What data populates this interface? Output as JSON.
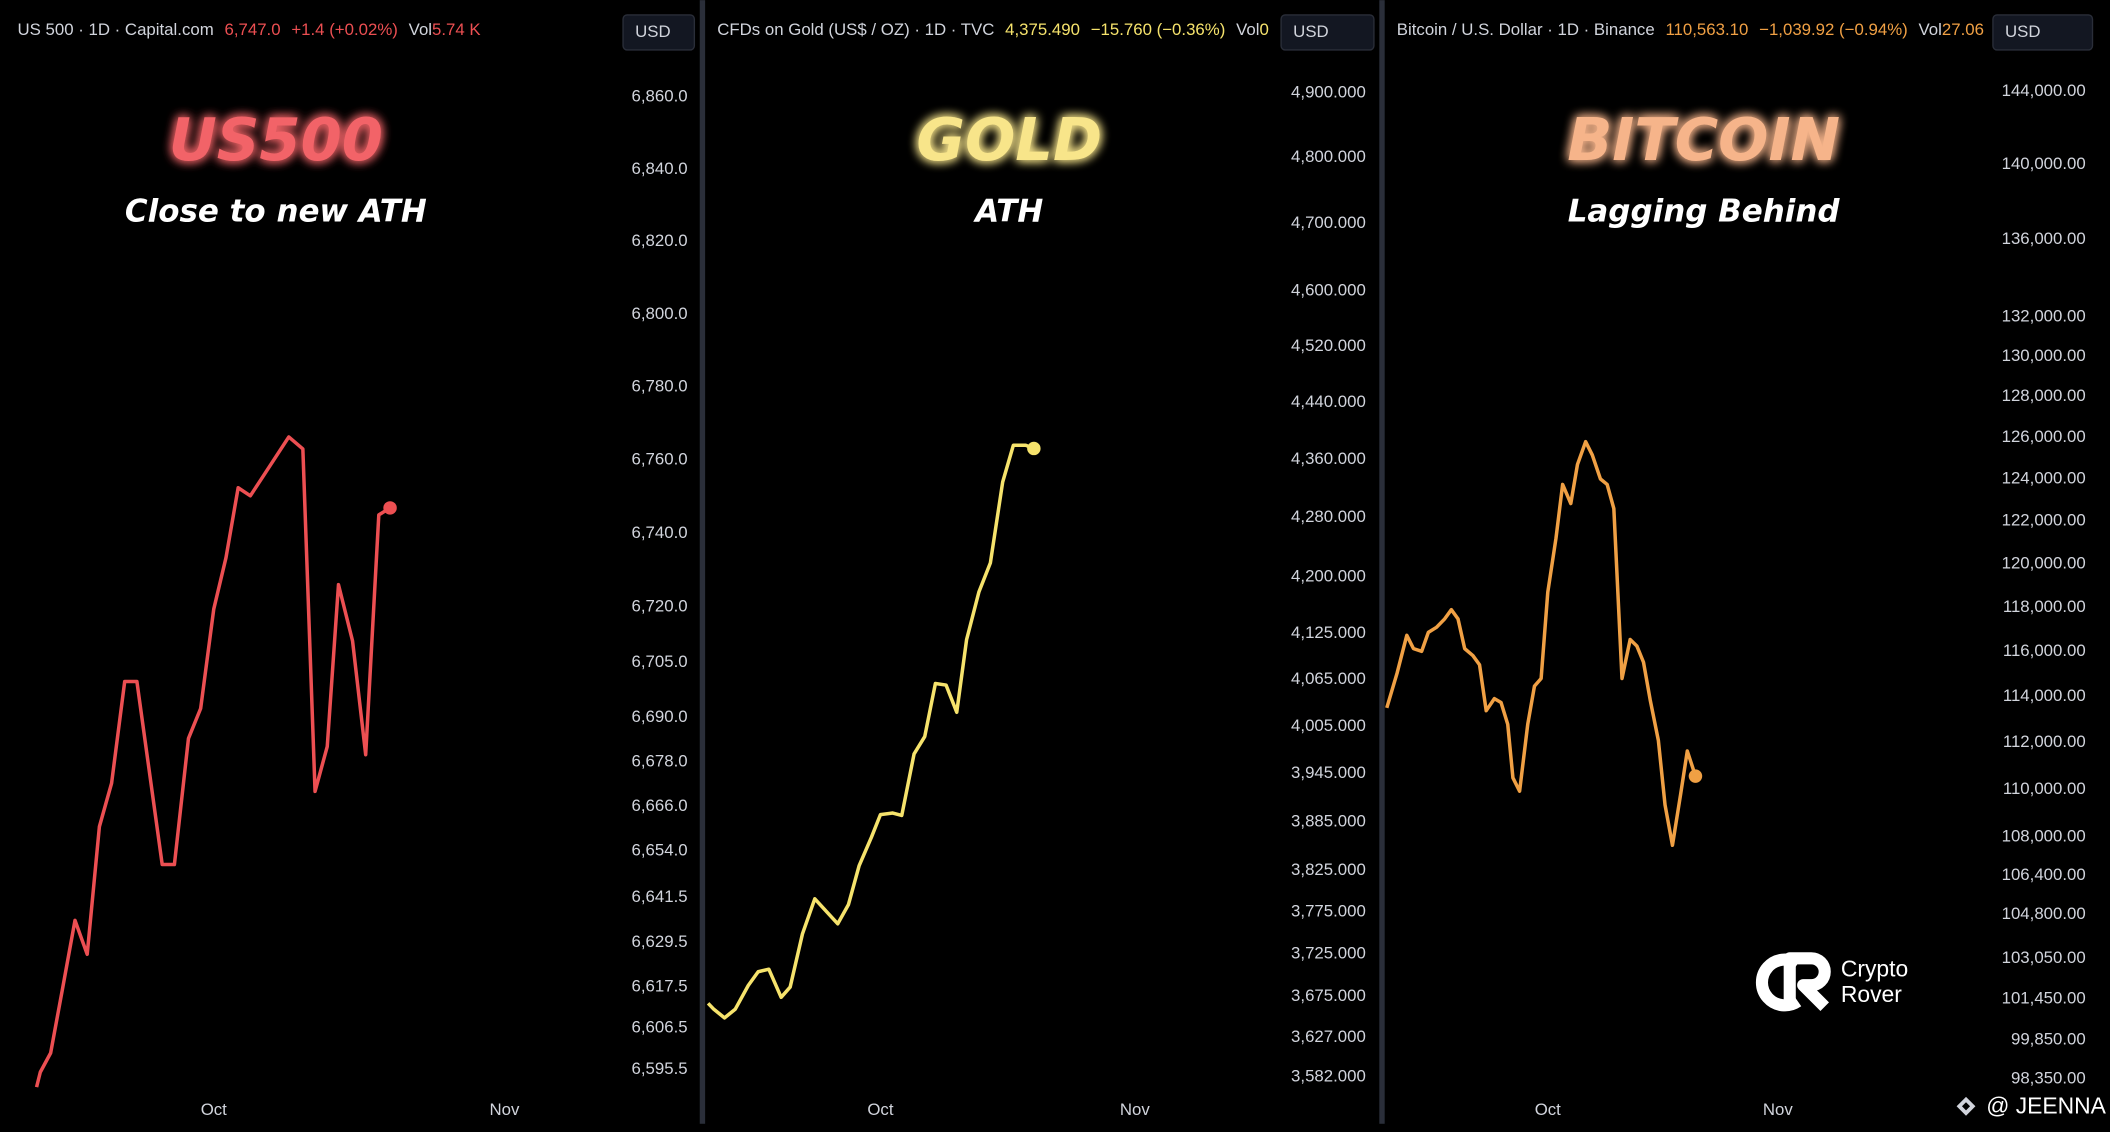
{
  "chart_data": [
    {
      "type": "line",
      "log": true,
      "color": "#ec4f52",
      "title_color": "#f26468",
      "title": "US500",
      "subtitle": "Close to new ATH",
      "currency": "USD",
      "header": {
        "symbol": "US 500 · 1D · Capital.com",
        "price": "6,747.0",
        "change": "+1.4 (+0.02%)",
        "volume_label": "Vol",
        "volume": "5.74 K"
      },
      "x": [
        -18.9,
        -18.5,
        -17.4,
        -16.1,
        -14.8,
        -13.5,
        -12.2,
        -10.9,
        -9.5,
        -8.2,
        -5.5,
        -4.2,
        -2.7,
        -1.4,
        0,
        1.3,
        2.6,
        3.9,
        5.2,
        6.6,
        8.0,
        9.5,
        10.8,
        12.1,
        13.3,
        14.8,
        16.2,
        17.6,
        18.8
      ],
      "values": [
        6590.8,
        6594.8,
        6599.9,
        6617.5,
        6635.4,
        6626.3,
        6660.6,
        6672.3,
        6699.8,
        6699.8,
        6650.4,
        6650.4,
        6684.4,
        6692.5,
        6719.5,
        6733.4,
        6752.5,
        6750.3,
        6755.4,
        6760.9,
        6766.4,
        6763.1,
        6670.1,
        6682.2,
        6726.1,
        6710.8,
        6680.0,
        6745.1,
        6747.0
      ],
      "xlim": [
        -22.8,
        42.5
      ],
      "xticks": [
        {
          "value": 0,
          "label": "Oct"
        },
        {
          "value": 31,
          "label": "Nov"
        }
      ],
      "ylim": [
        6590,
        6872
      ],
      "yticks": [
        {
          "value": 6860,
          "label": "6,860.0"
        },
        {
          "value": 6840,
          "label": "6,840.0"
        },
        {
          "value": 6820,
          "label": "6,820.0"
        },
        {
          "value": 6800,
          "label": "6,800.0"
        },
        {
          "value": 6780,
          "label": "6,780.0"
        },
        {
          "value": 6760,
          "label": "6,760.0"
        },
        {
          "value": 6740,
          "label": "6,740.0"
        },
        {
          "value": 6720,
          "label": "6,720.0"
        },
        {
          "value": 6705,
          "label": "6,705.0"
        },
        {
          "value": 6690,
          "label": "6,690.0"
        },
        {
          "value": 6678,
          "label": "6,678.0"
        },
        {
          "value": 6666,
          "label": "6,666.0"
        },
        {
          "value": 6654,
          "label": "6,654.0"
        },
        {
          "value": 6641.5,
          "label": "6,641.5"
        },
        {
          "value": 6629.5,
          "label": "6,629.5"
        },
        {
          "value": 6617.5,
          "label": "6,617.5"
        },
        {
          "value": 6606.5,
          "label": "6,606.5"
        },
        {
          "value": 6595.5,
          "label": "6,595.5"
        }
      ]
    },
    {
      "type": "line",
      "log": true,
      "color": "#f6e36c",
      "title_color": "#f8e58a",
      "title": "GOLD",
      "subtitle": "ATH",
      "currency": "USD",
      "header": {
        "symbol": "CFDs on Gold (US$ / OZ) · 1D · TVC",
        "price": "4,375.490",
        "change": "−15.760 (−0.36%)",
        "volume_label": "Vol",
        "volume": "0"
      },
      "x": [
        -21.0,
        -20.3,
        -19.0,
        -17.7,
        -16.1,
        -14.9,
        -13.6,
        -12.1,
        -11.0,
        -9.5,
        -8.0,
        -6.6,
        -5.2,
        -3.9,
        -2.6,
        -1.1,
        0,
        1.5,
        2.6,
        4.1,
        5.4,
        6.7,
        8.0,
        9.3,
        10.5,
        12.0,
        13.4,
        14.9,
        16.2,
        17.7,
        18.7
      ],
      "values": [
        3667,
        3660,
        3650,
        3660,
        3688,
        3704,
        3707,
        3674,
        3686,
        3749,
        3791,
        3776,
        3761,
        3784,
        3831,
        3866,
        3894,
        3896,
        3893,
        3970,
        3992,
        4060,
        4058,
        4023,
        4117,
        4180,
        4219,
        4329,
        4380,
        4380,
        4375.49
      ],
      "xlim": [
        -21.2,
        48.5
      ],
      "xticks": [
        {
          "value": 0,
          "label": "Oct"
        },
        {
          "value": 31,
          "label": "Nov"
        }
      ],
      "ylim": [
        3567,
        4961
      ],
      "yticks": [
        {
          "value": 4900,
          "label": "4,900.000"
        },
        {
          "value": 4800,
          "label": "4,800.000"
        },
        {
          "value": 4700,
          "label": "4,700.000"
        },
        {
          "value": 4600,
          "label": "4,600.000"
        },
        {
          "value": 4520,
          "label": "4,520.000"
        },
        {
          "value": 4440,
          "label": "4,440.000"
        },
        {
          "value": 4360,
          "label": "4,360.000"
        },
        {
          "value": 4280,
          "label": "4,280.000"
        },
        {
          "value": 4200,
          "label": "4,200.000"
        },
        {
          "value": 4125,
          "label": "4,125.000"
        },
        {
          "value": 4065,
          "label": "4,065.000"
        },
        {
          "value": 4005,
          "label": "4,005.000"
        },
        {
          "value": 3945,
          "label": "3,945.000"
        },
        {
          "value": 3885,
          "label": "3,885.000"
        },
        {
          "value": 3825,
          "label": "3,825.000"
        },
        {
          "value": 3775,
          "label": "3,775.000"
        },
        {
          "value": 3725,
          "label": "3,725.000"
        },
        {
          "value": 3675,
          "label": "3,675.000"
        },
        {
          "value": 3627,
          "label": "3,627.000"
        },
        {
          "value": 3582,
          "label": "3,582.000"
        }
      ]
    },
    {
      "type": "line",
      "log": true,
      "color": "#f0a044",
      "title_color": "#f6b48a",
      "title": "BITCOIN",
      "subtitle": "Lagging Behind",
      "currency": "USD",
      "header": {
        "symbol": "Bitcoin / U.S. Dollar · 1D · Binance",
        "price": "110,563.10",
        "change": "−1,039.92 (−0.94%)",
        "volume_label": "Vol",
        "volume": "27.06"
      },
      "x": [
        -21.7,
        -20.3,
        -19.0,
        -18.1,
        -17.0,
        -16.1,
        -15.0,
        -13.9,
        -13.0,
        -12.1,
        -11.2,
        -10.1,
        -9.2,
        -8.3,
        -7.2,
        -6.3,
        -5.4,
        -4.7,
        -3.8,
        -2.7,
        -1.8,
        -0.9,
        0,
        1.1,
        2.0,
        3.1,
        4.0,
        5.1,
        6.0,
        7.1,
        8.0,
        8.9,
        10.0,
        11.1,
        12.0,
        12.9,
        13.8,
        14.9,
        15.8,
        16.8,
        17.9,
        18.8,
        19.9
      ],
      "values": [
        113516,
        115060,
        116740,
        116140,
        116020,
        116870,
        117100,
        117480,
        117900,
        117480,
        116140,
        115830,
        115420,
        113390,
        113920,
        113750,
        112800,
        110490,
        109920,
        112800,
        114470,
        114810,
        118700,
        121190,
        123740,
        122830,
        124700,
        125800,
        125150,
        124000,
        123740,
        122590,
        114810,
        116550,
        116260,
        115530,
        113860,
        112100,
        109340,
        107650,
        109790,
        111640,
        110563.1
      ],
      "xlim": [
        -21.8,
        58.9
      ],
      "xticks": [
        {
          "value": 0,
          "label": "Oct"
        },
        {
          "value": 31,
          "label": "Nov"
        }
      ],
      "ylim": [
        97940,
        146110
      ],
      "yticks": [
        {
          "value": 144000,
          "label": "144,000.00"
        },
        {
          "value": 140000,
          "label": "140,000.00"
        },
        {
          "value": 136000,
          "label": "136,000.00"
        },
        {
          "value": 132000,
          "label": "132,000.00"
        },
        {
          "value": 130000,
          "label": "130,000.00"
        },
        {
          "value": 128000,
          "label": "128,000.00"
        },
        {
          "value": 126000,
          "label": "126,000.00"
        },
        {
          "value": 124000,
          "label": "124,000.00"
        },
        {
          "value": 122000,
          "label": "122,000.00"
        },
        {
          "value": 120000,
          "label": "120,000.00"
        },
        {
          "value": 118000,
          "label": "118,000.00"
        },
        {
          "value": 116000,
          "label": "116,000.00"
        },
        {
          "value": 114000,
          "label": "114,000.00"
        },
        {
          "value": 112000,
          "label": "112,000.00"
        },
        {
          "value": 110000,
          "label": "110,000.00"
        },
        {
          "value": 108000,
          "label": "108,000.00"
        },
        {
          "value": 106400,
          "label": "106,400.00"
        },
        {
          "value": 104800,
          "label": "104,800.00"
        },
        {
          "value": 103050,
          "label": "103,050.00"
        },
        {
          "value": 101450,
          "label": "101,450.00"
        },
        {
          "value": 99850,
          "label": "99,850.00"
        },
        {
          "value": 98350,
          "label": "98,350.00"
        }
      ]
    }
  ],
  "watermark": {
    "brand_line1": "Crypto",
    "brand_line2": "Rover",
    "handle": "@ JEENNA"
  }
}
